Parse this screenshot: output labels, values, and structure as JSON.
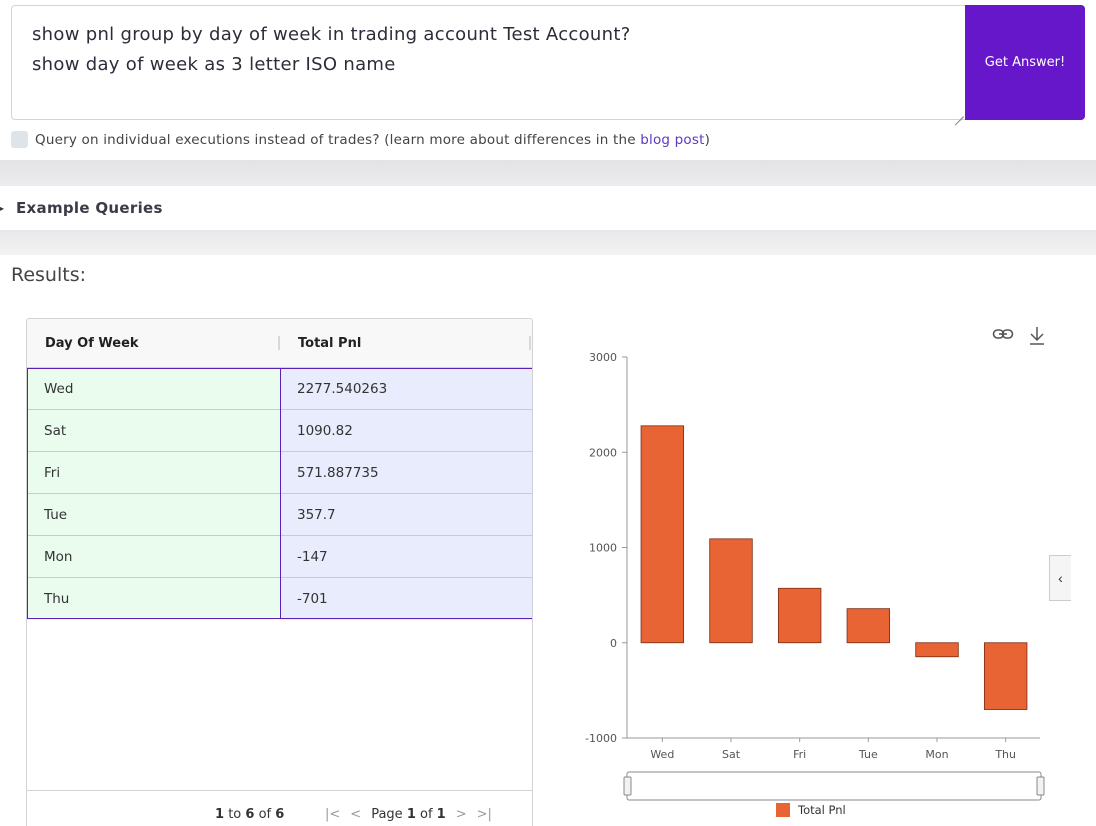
{
  "query": {
    "line1": "show pnl group by day of week in trading account Test Account?",
    "line2": "show day of week as 3 letter ISO name",
    "submit_label": "Get Answer!"
  },
  "executions_option": {
    "text_before": "Query on individual executions instead of trades? (learn more about differences in the ",
    "link_text": "blog post",
    "text_after": ")",
    "checked": false
  },
  "examples": {
    "label": "Example Queries"
  },
  "results": {
    "title": "Results:"
  },
  "grid": {
    "columns": [
      "Day Of Week",
      "Total Pnl"
    ],
    "rows": [
      {
        "day": "Wed",
        "pnl": "2277.540263"
      },
      {
        "day": "Sat",
        "pnl": "1090.82"
      },
      {
        "day": "Fri",
        "pnl": "571.887735"
      },
      {
        "day": "Tue",
        "pnl": "357.7"
      },
      {
        "day": "Mon",
        "pnl": "-147"
      },
      {
        "day": "Thu",
        "pnl": "-701"
      }
    ],
    "footer": {
      "from": "1",
      "to": "6",
      "of_word": "of",
      "to_word": "to",
      "total": "6",
      "page_word": "Page",
      "page": "1",
      "page_of": "of",
      "pages": "1"
    }
  },
  "chart_data": {
    "type": "bar",
    "categories": [
      "Wed",
      "Sat",
      "Fri",
      "Tue",
      "Mon",
      "Thu"
    ],
    "series": [
      {
        "name": "Total Pnl",
        "values": [
          2277.540263,
          1090.82,
          571.887735,
          357.7,
          -147,
          -701
        ],
        "color": "#e96435"
      }
    ],
    "ylim": [
      -1000,
      3000
    ],
    "yticks": [
      -1000,
      0,
      1000,
      2000,
      3000
    ],
    "legend": "bottom",
    "grid": false,
    "title": "",
    "xlabel": "",
    "ylabel": ""
  },
  "icons": {
    "link": "link-icon",
    "download": "download-icon",
    "collapse": "chevron-left-icon"
  },
  "colors": {
    "accent": "#6517c9",
    "bar": "#e96435",
    "day_cell": "#e9fcee",
    "pnl_cell": "#e9ecfd"
  }
}
